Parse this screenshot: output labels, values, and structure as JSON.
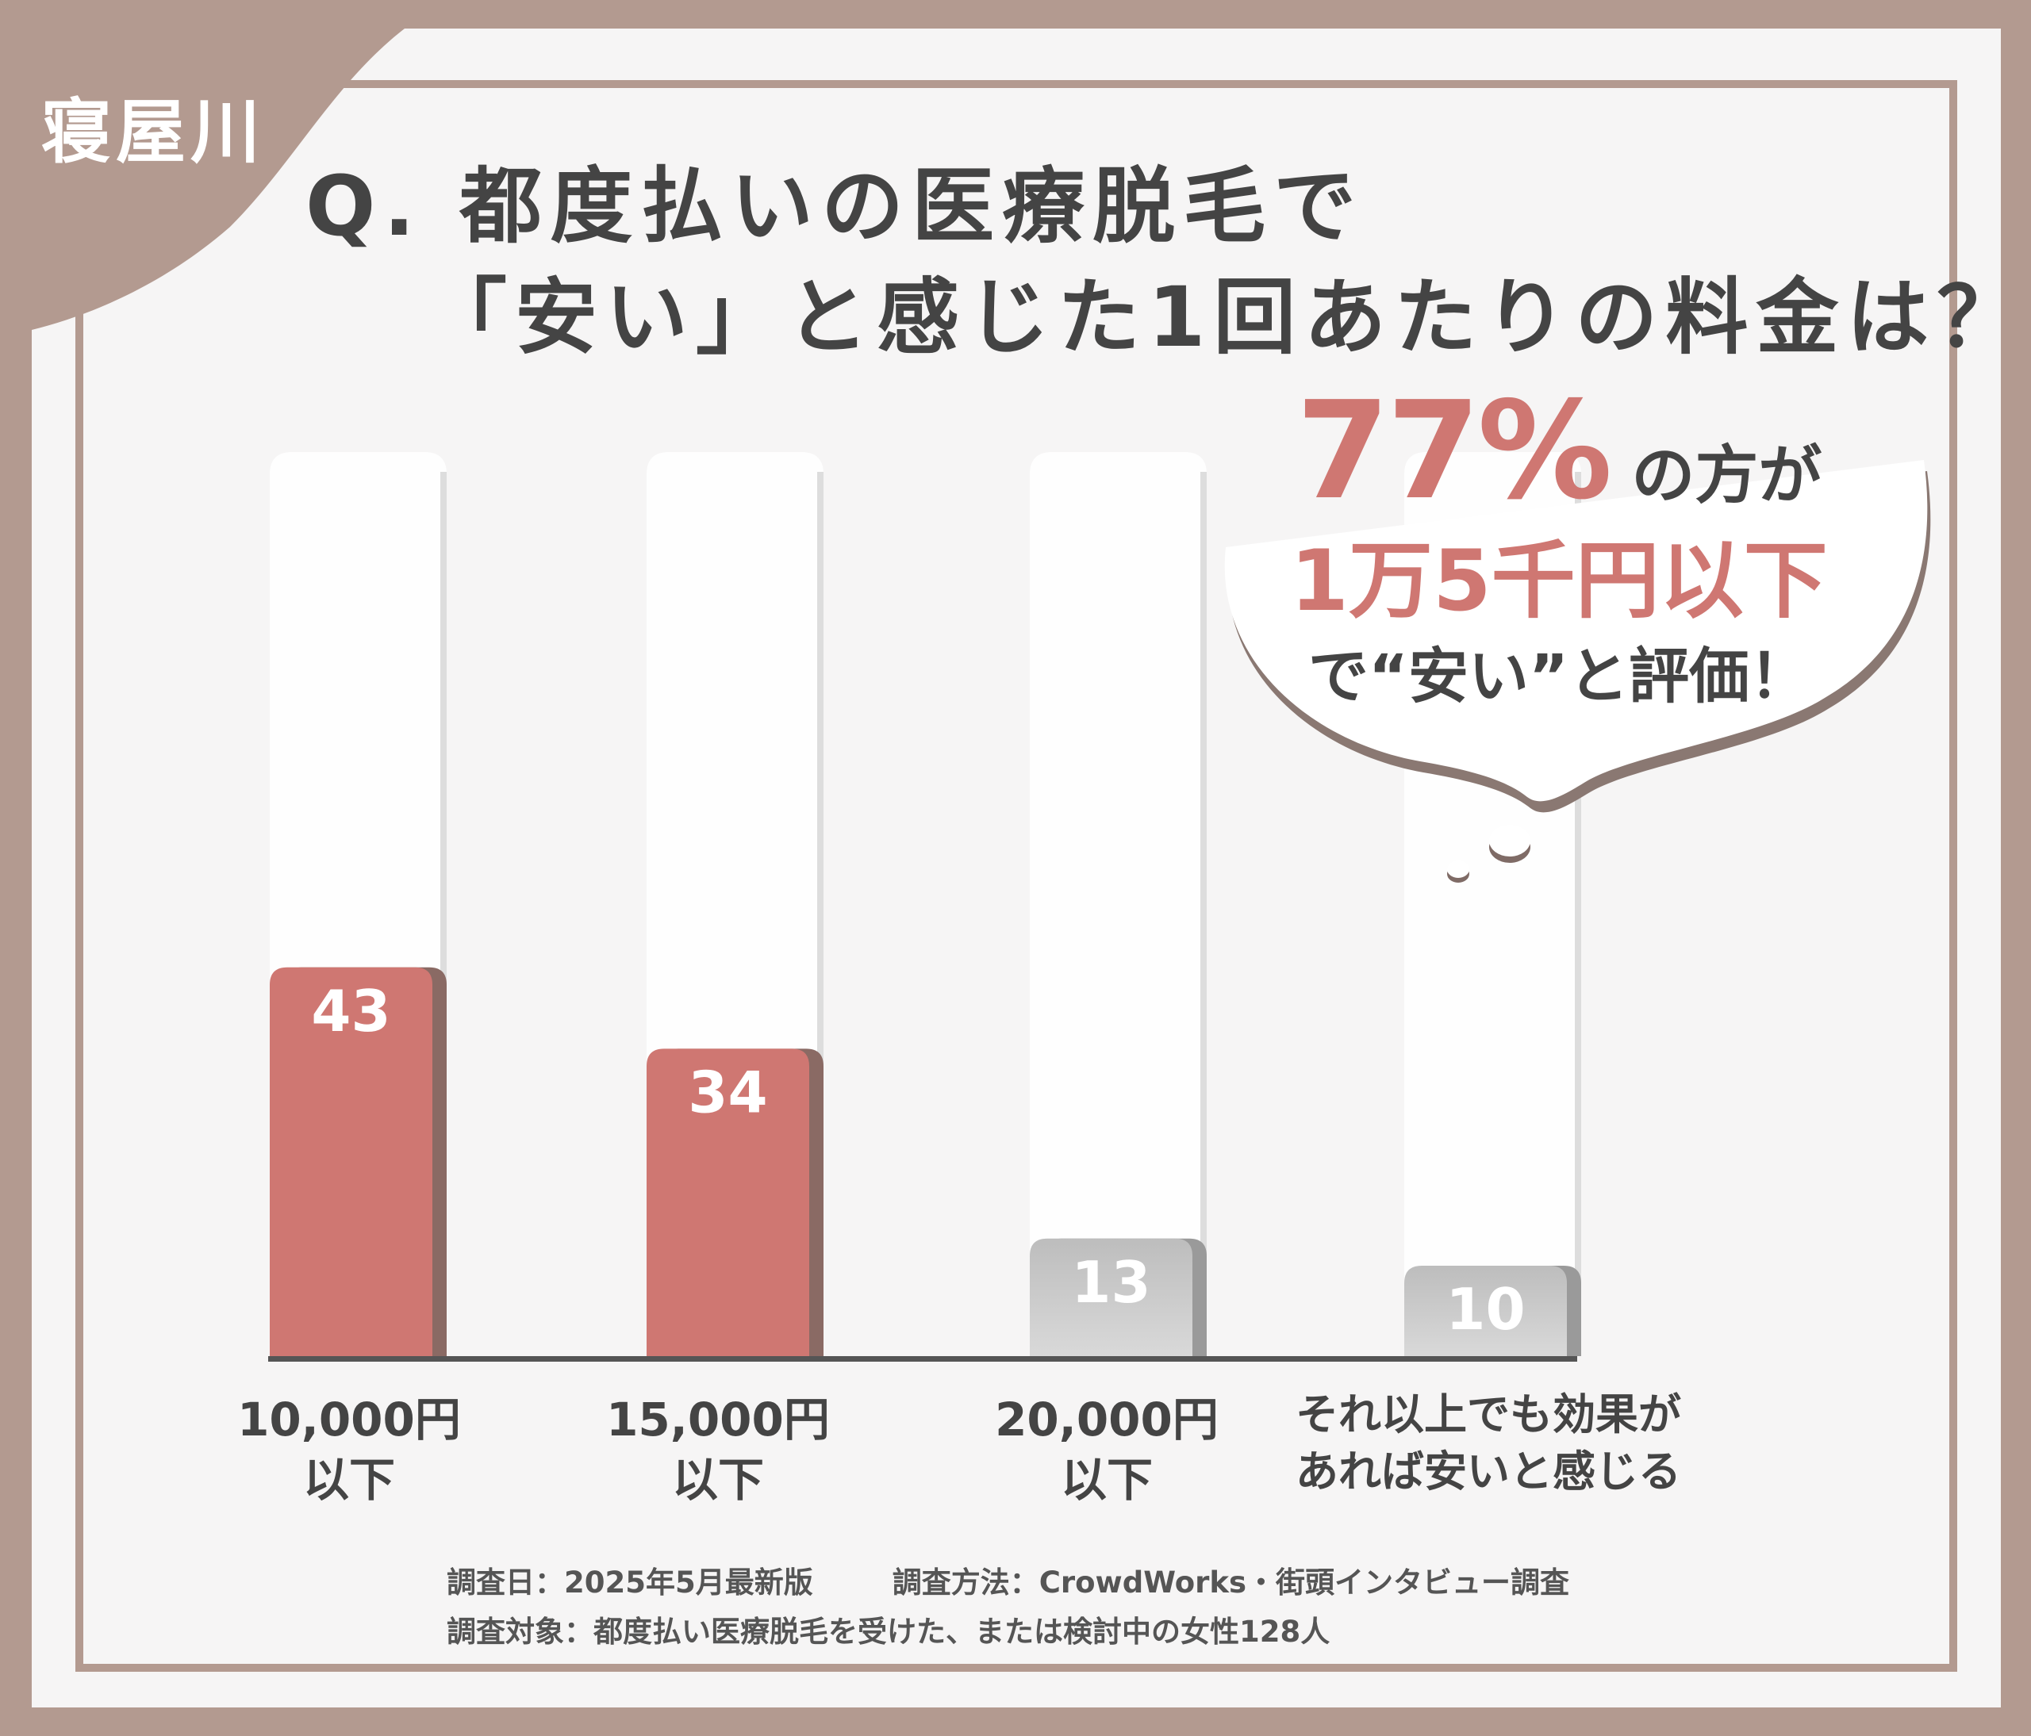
{
  "corner_label": "寝屋川",
  "title": {
    "line1": "Q. 都度払いの医療脱毛で",
    "line2": "「安い」と感じた1回あたりの料金は？"
  },
  "callout": {
    "percent": "77%",
    "line1_rest": "の方が",
    "line2": "1万5千円以下",
    "line3": "で“安い”と評価！"
  },
  "chart_data": {
    "type": "bar",
    "categories": [
      [
        "10,000円",
        "以下"
      ],
      [
        "15,000円",
        "以下"
      ],
      [
        "20,000円",
        "以下"
      ],
      [
        "それ以上でも効果が",
        "あれば安いと感じる"
      ]
    ],
    "values": [
      43,
      34,
      13,
      10
    ],
    "value_labels": [
      "43",
      "34",
      "13",
      "10"
    ],
    "highlighted": [
      true,
      true,
      false,
      false
    ],
    "ylim": [
      0,
      100
    ],
    "colors": {
      "highlight": "#cf7772",
      "highlight_shade": "#8a6a64",
      "normal": [
        "#bdbdbd",
        "#d9d9d9"
      ],
      "normal_shade": "#9a9a9a",
      "track": "#ffffff",
      "axis": "#555555"
    }
  },
  "footer": {
    "date": "調査日：2025年5月最新版",
    "method": "調査方法：CrowdWorks・街頭インタビュー調査",
    "target": "調査対象：都度払い医療脱毛を受けた、または検討中の女性128人"
  },
  "colors": {
    "frame": "#b39a90",
    "accent": "#cf7772",
    "text": "#444444"
  }
}
